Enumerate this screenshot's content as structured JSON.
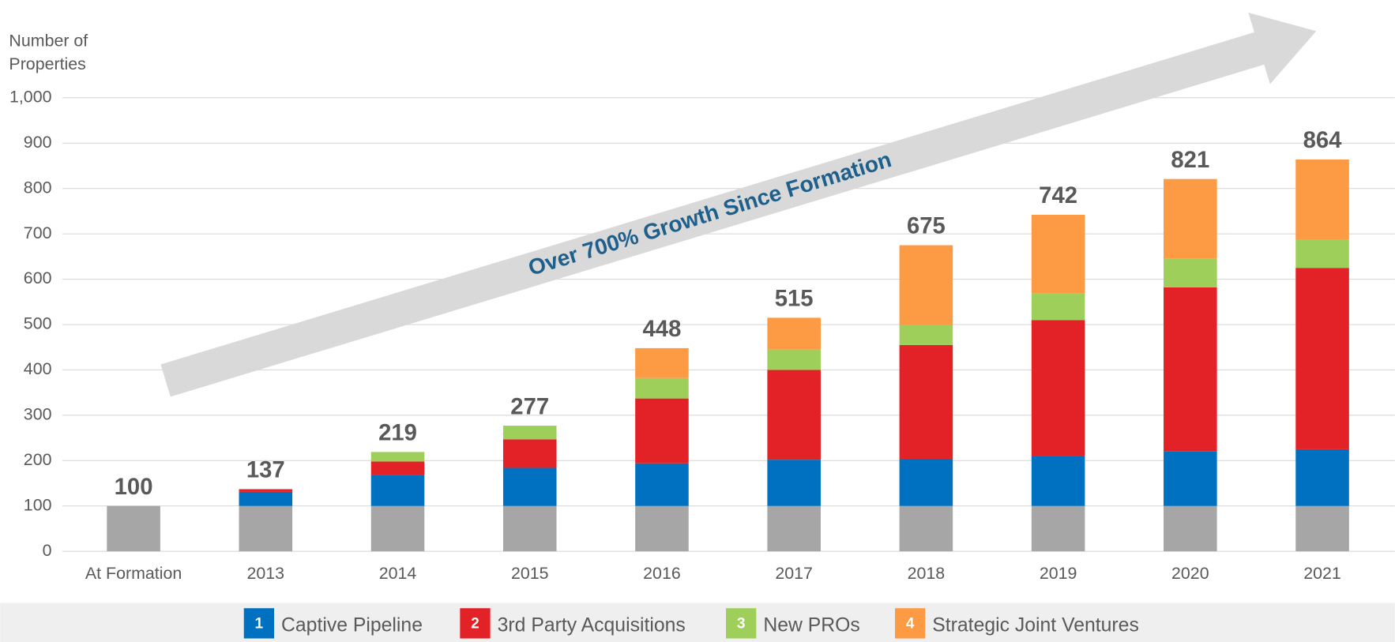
{
  "chart_data": {
    "type": "stacked_bar",
    "ylabel_lines": [
      "Number of",
      "Properties"
    ],
    "annotation": "Over 700% Growth Since Formation",
    "categories": [
      "At Formation",
      "2013",
      "2014",
      "2015",
      "2016",
      "2017",
      "2018",
      "2019",
      "2020",
      "2021"
    ],
    "series": [
      {
        "color": "#a6a6a6",
        "values": [
          100,
          100,
          100,
          100,
          100,
          100,
          100,
          100,
          100,
          100
        ]
      },
      {
        "name": "Captive Pipeline",
        "badge": 1,
        "color": "#0070c0",
        "values": [
          0,
          31,
          69,
          84,
          94,
          102,
          104,
          110,
          120,
          125
        ]
      },
      {
        "name": "3rd Party Acquisitions",
        "badge": 2,
        "color": "#e32227",
        "values": [
          0,
          6,
          29,
          63,
          143,
          198,
          251,
          300,
          362,
          400
        ]
      },
      {
        "name": "New PROs",
        "badge": 3,
        "color": "#9fcf5b",
        "values": [
          0,
          0,
          21,
          30,
          45,
          45,
          45,
          59,
          63,
          63
        ]
      },
      {
        "name": "Strategic Joint Ventures",
        "badge": 4,
        "color": "#fd9a44",
        "values": [
          0,
          0,
          0,
          0,
          66,
          70,
          175,
          173,
          176,
          176
        ]
      }
    ],
    "totals": [
      100,
      137,
      219,
      277,
      448,
      515,
      675,
      742,
      821,
      864
    ],
    "ylim": [
      0,
      1000
    ],
    "yticks": [
      0,
      100,
      200,
      300,
      400,
      500,
      600,
      700,
      800,
      900,
      {
        "value": 1000,
        "label": "1,000"
      }
    ],
    "grid": true
  }
}
